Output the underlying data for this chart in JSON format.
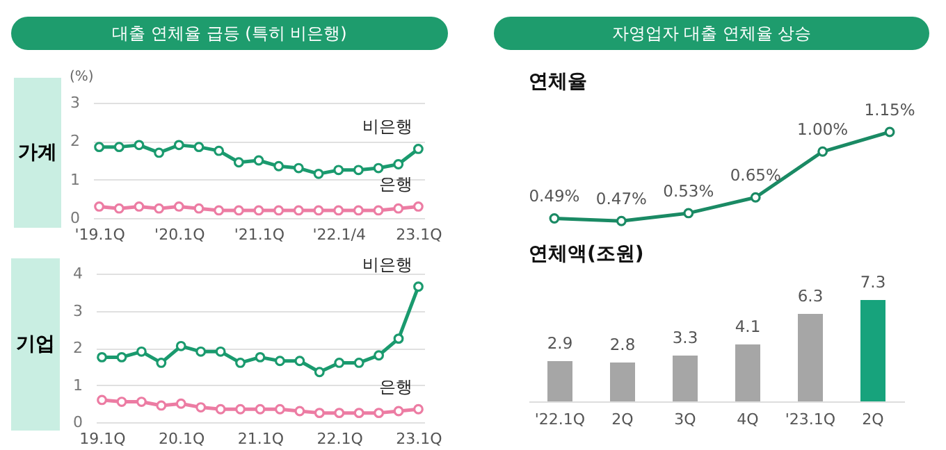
{
  "chart_data": [
    {
      "type": "line",
      "title": "대출 연체율 급등 (특히 비은행)",
      "ylabel": "가계",
      "annotations": [
        "(%)"
      ],
      "categories": [
        "'19.1Q",
        null,
        null,
        null,
        "'20.1Q",
        null,
        null,
        null,
        "'21.1Q",
        null,
        null,
        null,
        "'22.1/4",
        null,
        null,
        null,
        "23.1Q"
      ],
      "ylim": [
        0,
        3
      ],
      "yticks": [
        0,
        1,
        2,
        3
      ],
      "grid": "y",
      "marker": "circle",
      "series": [
        {
          "name": "비은행",
          "color": "#1a9a6e",
          "values": [
            1.85,
            1.85,
            1.9,
            1.7,
            1.9,
            1.85,
            1.75,
            1.45,
            1.5,
            1.35,
            1.3,
            1.15,
            1.25,
            1.25,
            1.3,
            1.4,
            1.8
          ]
        },
        {
          "name": "은행",
          "color": "#ec7ca3",
          "values": [
            0.3,
            0.25,
            0.3,
            0.25,
            0.3,
            0.25,
            0.2,
            0.2,
            0.2,
            0.2,
            0.2,
            0.2,
            0.2,
            0.2,
            0.2,
            0.25,
            0.3
          ]
        }
      ]
    },
    {
      "type": "line",
      "ylabel": "기업",
      "categories": [
        "19.1Q",
        null,
        null,
        null,
        "20.1Q",
        null,
        null,
        null,
        "21.1Q",
        null,
        null,
        null,
        "22.1Q",
        null,
        null,
        null,
        "23.1Q"
      ],
      "ylim": [
        0,
        4
      ],
      "yticks": [
        0,
        1,
        2,
        3,
        4
      ],
      "grid": "y",
      "marker": "circle",
      "series": [
        {
          "name": "비은행",
          "color": "#1a9a6e",
          "values": [
            1.75,
            1.75,
            1.9,
            1.6,
            2.05,
            1.9,
            1.9,
            1.6,
            1.75,
            1.65,
            1.65,
            1.35,
            1.6,
            1.6,
            1.8,
            2.25,
            3.65
          ]
        },
        {
          "name": "은행",
          "color": "#ec7ca3",
          "values": [
            0.6,
            0.55,
            0.55,
            0.45,
            0.5,
            0.4,
            0.35,
            0.35,
            0.35,
            0.35,
            0.3,
            0.25,
            0.25,
            0.25,
            0.25,
            0.3,
            0.35
          ]
        }
      ]
    },
    {
      "type": "line",
      "title": "자영업자 대출 연체율 상승",
      "subtitle": "연체율",
      "categories": [
        null,
        null,
        null,
        null,
        null,
        null
      ],
      "marker": "circle",
      "series": [
        {
          "color": "#1a8a64",
          "values": [
            0.49,
            0.47,
            0.53,
            0.65,
            1.0,
            1.15
          ],
          "value_labels": [
            "0.49%",
            "0.47%",
            "0.53%",
            "0.65%",
            "1.00%",
            "1.15%"
          ]
        }
      ]
    },
    {
      "type": "bar",
      "subtitle": "연체액(조원)",
      "categories": [
        "'22.1Q",
        "2Q",
        "3Q",
        "4Q",
        "'23.1Q",
        "2Q"
      ],
      "data_labels": true,
      "values": [
        2.9,
        2.8,
        3.3,
        4.1,
        6.3,
        7.3
      ],
      "colors": [
        "#a6a6a6",
        "#a6a6a6",
        "#a6a6a6",
        "#a6a6a6",
        "#a6a6a6",
        "#17a37c"
      ]
    }
  ]
}
